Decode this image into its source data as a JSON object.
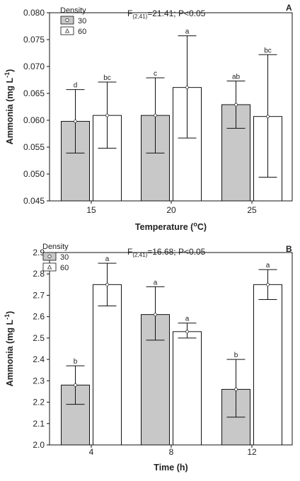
{
  "chart_data": [
    {
      "type": "bar",
      "panel_letter": "A",
      "annotation": {
        "prefix": "F",
        "subscript": "(2,41)",
        "suffix": "=21.41; P<0.05"
      },
      "xlabel": "Temperature (",
      "xlabel_sup": "o",
      "xlabel_tail": "C)",
      "ylabel": "Ammonia (mg L",
      "ylabel_sup": "-1",
      "ylabel_tail": ")",
      "ylim": [
        0.045,
        0.08
      ],
      "yticks": [
        0.045,
        0.05,
        0.055,
        0.06,
        0.065,
        0.07,
        0.075,
        0.08
      ],
      "ytick_labels": [
        "0.045",
        "0.050",
        "0.055",
        "0.060",
        "0.065",
        "0.070",
        "0.075",
        "0.080"
      ],
      "categories": [
        "15",
        "20",
        "25"
      ],
      "legend": {
        "title": "Density",
        "placement": "top-left"
      },
      "series": [
        {
          "name": "30",
          "color": "#c8c8c8",
          "values": [
            0.0598,
            0.0609,
            0.0629
          ],
          "err_low": [
            0.0539,
            0.0539,
            0.0585
          ],
          "err_high": [
            0.0657,
            0.0679,
            0.0673
          ],
          "letters": [
            "d",
            "c",
            "ab"
          ]
        },
        {
          "name": "60",
          "color": "#ffffff",
          "values": [
            0.0609,
            0.0661,
            0.0607
          ],
          "err_low": [
            0.0548,
            0.0567,
            0.0494
          ],
          "err_high": [
            0.0671,
            0.0757,
            0.0722
          ],
          "letters": [
            "bc",
            "a",
            "bc"
          ]
        }
      ],
      "grid": false
    },
    {
      "type": "bar",
      "panel_letter": "B",
      "annotation": {
        "prefix": "F",
        "subscript": "(2,41)",
        "suffix": "=16.68; P<0.05"
      },
      "xlabel": "Time (h)",
      "ylabel": "Ammonia (mg L",
      "ylabel_sup": "-1",
      "ylabel_tail": ")",
      "ylim": [
        2.0,
        2.9
      ],
      "yticks": [
        2.0,
        2.1,
        2.2,
        2.3,
        2.4,
        2.5,
        2.6,
        2.7,
        2.8,
        2.9
      ],
      "ytick_labels": [
        "2.0",
        "2.1",
        "2.2",
        "2.3",
        "2.4",
        "2.5",
        "2.6",
        "2.7",
        "2.8",
        "2.9"
      ],
      "categories": [
        "4",
        "8",
        "12"
      ],
      "legend": {
        "title": "Density",
        "placement": "top-left"
      },
      "series": [
        {
          "name": "30",
          "color": "#c8c8c8",
          "values": [
            2.28,
            2.61,
            2.26
          ],
          "err_low": [
            2.19,
            2.49,
            2.13
          ],
          "err_high": [
            2.37,
            2.74,
            2.4
          ],
          "letters": [
            "b",
            "a",
            "b"
          ]
        },
        {
          "name": "60",
          "color": "#ffffff",
          "values": [
            2.75,
            2.53,
            2.75
          ],
          "err_low": [
            2.65,
            2.5,
            2.68
          ],
          "err_high": [
            2.85,
            2.57,
            2.82
          ],
          "letters": [
            "a",
            "a",
            "a"
          ]
        }
      ],
      "grid": false
    }
  ]
}
